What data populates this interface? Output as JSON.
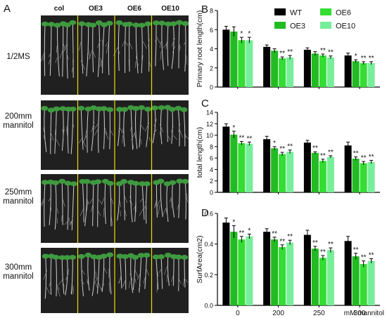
{
  "panel_letters": {
    "a": "A",
    "b": "B",
    "c": "C",
    "d": "D"
  },
  "photo_panel": {
    "column_headers": [
      "col",
      "OE3",
      "OE6",
      "OE10"
    ],
    "rows": [
      {
        "line1": "1/2MS",
        "line2": ""
      },
      {
        "line1": "200mm",
        "line2": "mannitol"
      },
      {
        "line1": "250mm",
        "line2": "mannitol"
      },
      {
        "line1": "300mm",
        "line2": "mannitol"
      }
    ]
  },
  "legend": [
    {
      "name": "WT",
      "color": "#000000"
    },
    {
      "name": "OE6",
      "color": "#33dd33"
    },
    {
      "name": "OE3",
      "color": "#22bb22"
    },
    {
      "name": "OE10",
      "color": "#77ee99"
    }
  ],
  "x_axis_note": "mM mannitol",
  "chart_data": [
    {
      "type": "bar",
      "panel": "B",
      "ylabel": "Primary root length(cm)",
      "categories": [
        "0",
        "200",
        "250",
        "300"
      ],
      "ylim": [
        0,
        8
      ],
      "yticks": [
        "0",
        "2",
        "4",
        "6",
        "8"
      ],
      "series_colors": [
        "#000000",
        "#22bb22",
        "#33dd33",
        "#77ee99"
      ],
      "series": [
        {
          "name": "WT",
          "values": [
            6.0,
            4.2,
            3.9,
            3.3
          ],
          "errors": [
            0.35,
            0.2,
            0.2,
            0.25
          ]
        },
        {
          "name": "OE3",
          "values": [
            5.8,
            3.8,
            3.5,
            2.7
          ],
          "errors": [
            0.5,
            0.2,
            0.2,
            0.15
          ]
        },
        {
          "name": "OE6",
          "values": [
            4.9,
            3.0,
            3.3,
            2.5
          ],
          "errors": [
            0.3,
            0.15,
            0.15,
            0.15
          ]
        },
        {
          "name": "OE10",
          "values": [
            4.9,
            3.1,
            3.1,
            2.5
          ],
          "errors": [
            0.3,
            0.2,
            0.15,
            0.15
          ]
        }
      ],
      "significance": [
        [
          "",
          "",
          "",
          ""
        ],
        [
          "",
          "",
          "",
          "*"
        ],
        [
          "*",
          "**",
          "**",
          "**"
        ],
        [
          "*",
          "**",
          "**",
          "**"
        ]
      ]
    },
    {
      "type": "bar",
      "panel": "C",
      "ylabel": "total length(cm)",
      "categories": [
        "0",
        "200",
        "250",
        "300"
      ],
      "ylim": [
        0,
        14
      ],
      "yticks": [
        "0",
        "2",
        "4",
        "6",
        "8",
        "10",
        "12",
        "14"
      ],
      "series_colors": [
        "#000000",
        "#22bb22",
        "#33dd33",
        "#77ee99"
      ],
      "series": [
        {
          "name": "WT",
          "values": [
            11.5,
            9.3,
            8.7,
            8.2
          ],
          "errors": [
            0.5,
            0.5,
            0.4,
            0.6
          ]
        },
        {
          "name": "OE3",
          "values": [
            10.1,
            7.7,
            6.9,
            5.9
          ],
          "errors": [
            0.6,
            0.3,
            0.2,
            0.3
          ]
        },
        {
          "name": "OE6",
          "values": [
            8.6,
            6.7,
            5.5,
            5.1
          ],
          "errors": [
            0.3,
            0.3,
            0.3,
            0.3
          ]
        },
        {
          "name": "OE10",
          "values": [
            8.5,
            7.1,
            6.2,
            5.3
          ],
          "errors": [
            0.3,
            0.3,
            0.2,
            0.3
          ]
        }
      ],
      "significance": [
        [
          "",
          "",
          "",
          ""
        ],
        [
          "*",
          "*",
          "**",
          "**"
        ],
        [
          "**",
          "**",
          "**",
          "**"
        ],
        [
          "**",
          "**",
          "**",
          "**"
        ]
      ]
    },
    {
      "type": "bar",
      "panel": "D",
      "ylabel": "SurfArea(cm2)",
      "categories": [
        "0",
        "200",
        "250",
        "300"
      ],
      "ylim": [
        0,
        0.6
      ],
      "yticks": [
        "0.0",
        "0.2",
        "0.4",
        "0.6"
      ],
      "series_colors": [
        "#000000",
        "#22bb22",
        "#33dd33",
        "#77ee99"
      ],
      "series": [
        {
          "name": "WT",
          "values": [
            0.54,
            0.48,
            0.46,
            0.42
          ],
          "errors": [
            0.03,
            0.02,
            0.03,
            0.03
          ]
        },
        {
          "name": "OE3",
          "values": [
            0.48,
            0.43,
            0.37,
            0.32
          ],
          "errors": [
            0.04,
            0.015,
            0.015,
            0.02
          ]
        },
        {
          "name": "OE6",
          "values": [
            0.43,
            0.38,
            0.31,
            0.27
          ],
          "errors": [
            0.02,
            0.015,
            0.015,
            0.02
          ]
        },
        {
          "name": "OE10",
          "values": [
            0.45,
            0.41,
            0.36,
            0.29
          ],
          "errors": [
            0.015,
            0.015,
            0.015,
            0.015
          ]
        }
      ],
      "significance": [
        [
          "",
          "",
          "",
          ""
        ],
        [
          "*",
          "**",
          "**",
          "**"
        ],
        [
          "**",
          "**",
          "**",
          "**"
        ],
        [
          "*",
          "**",
          "**",
          "**"
        ]
      ]
    }
  ]
}
